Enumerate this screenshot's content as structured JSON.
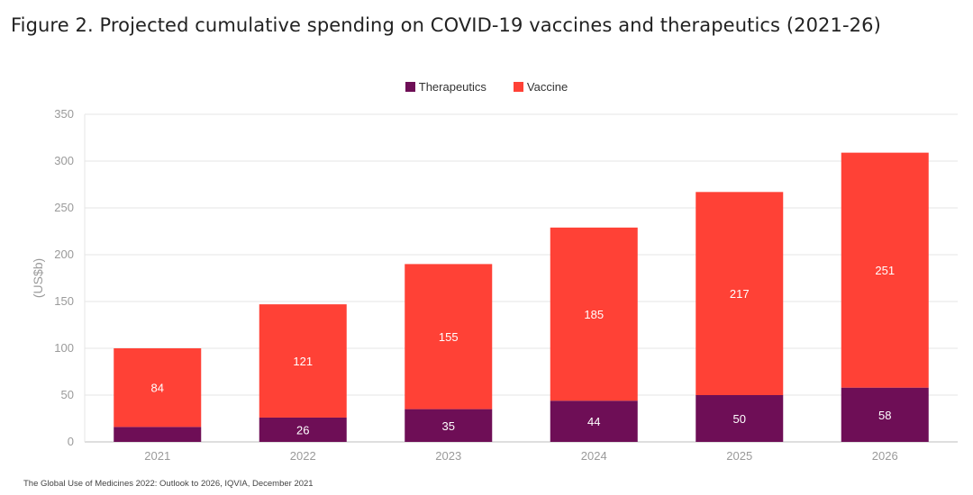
{
  "title": "Figure 2. Projected cumulative spending on COVID-19 vaccines and therapeutics (2021-26)",
  "source": "The Global Use of Medicines 2022: Outlook to 2026, IQVIA, December 2021",
  "chart_data": {
    "type": "bar",
    "stacked": true,
    "categories": [
      "2021",
      "2022",
      "2023",
      "2024",
      "2025",
      "2026"
    ],
    "series": [
      {
        "name": "Therapeutics",
        "color": "#6e0e56",
        "values": [
          16,
          26,
          35,
          44,
          50,
          58
        ],
        "labels": [
          "",
          "26",
          "35",
          "44",
          "50",
          "58"
        ]
      },
      {
        "name": "Vaccine",
        "color": "#ff4136",
        "values": [
          84,
          121,
          155,
          185,
          217,
          251
        ],
        "labels": [
          "84",
          "121",
          "155",
          "185",
          "217",
          "251"
        ]
      }
    ],
    "ylabel": "(US$b)",
    "xlabel": "",
    "ylim": [
      0,
      350
    ],
    "yticks": [
      0,
      50,
      100,
      150,
      200,
      250,
      300,
      350
    ],
    "grid": true,
    "legend_position": "top-center"
  }
}
